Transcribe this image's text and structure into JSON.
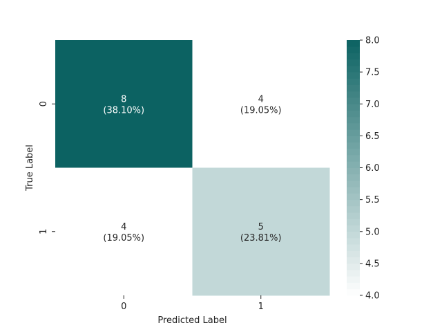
{
  "chart_data": {
    "type": "heatmap",
    "xlabel": "Predicted Label",
    "ylabel": "True Label",
    "x_categories": [
      "0",
      "1"
    ],
    "y_categories": [
      "0",
      "1"
    ],
    "cells": [
      {
        "row": 0,
        "col": 0,
        "value": 8,
        "label": "8",
        "percent": "(38.10%)"
      },
      {
        "row": 0,
        "col": 1,
        "value": 4,
        "label": "4",
        "percent": "(19.05%)"
      },
      {
        "row": 1,
        "col": 0,
        "value": 4,
        "label": "4",
        "percent": "(19.05%)"
      },
      {
        "row": 1,
        "col": 1,
        "value": 5,
        "label": "5",
        "percent": "(23.81%)"
      }
    ],
    "colorbar": {
      "min": 4.0,
      "max": 8.0,
      "ticks": [
        "4.0",
        "4.5",
        "5.0",
        "5.5",
        "6.0",
        "6.5",
        "7.0",
        "7.5",
        "8.0"
      ],
      "color_low": "#ffffff",
      "color_high": "#0c6262"
    },
    "grid": false
  }
}
